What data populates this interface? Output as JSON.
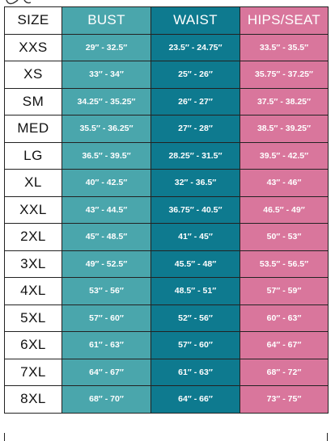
{
  "colors": {
    "bust": "#4aa6ac",
    "waist": "#0e7a8f",
    "hips": "#d9769c"
  },
  "headers": {
    "size": "SIZE",
    "bust": "BUST",
    "waist": "WAIST",
    "hips": "HIPS/SEAT"
  },
  "rows": [
    {
      "size": "XXS",
      "bust": "29″ - 32.5″",
      "waist": "23.5″ - 24.75″",
      "hips": "33.5″ - 35.5″"
    },
    {
      "size": "XS",
      "bust": "33″ - 34″",
      "waist": "25″ - 26″",
      "hips": "35.75″ - 37.25″"
    },
    {
      "size": "SM",
      "bust": "34.25″ - 35.25″",
      "waist": "26″ - 27″",
      "hips": "37.5″ - 38.25″"
    },
    {
      "size": "MED",
      "bust": "35.5″ - 36.25″",
      "waist": "27″ - 28″",
      "hips": "38.5″ - 39.25″"
    },
    {
      "size": "LG",
      "bust": "36.5″ - 39.5″",
      "waist": "28.25″ - 31.5″",
      "hips": "39.5″ - 42.5″"
    },
    {
      "size": "XL",
      "bust": "40″ - 42.5″",
      "waist": "32″ - 36.5″",
      "hips": "43″ - 46″"
    },
    {
      "size": "XXL",
      "bust": "43″ - 44.5″",
      "waist": "36.75″ - 40.5″",
      "hips": "46.5″ - 49″"
    },
    {
      "size": "2XL",
      "bust": "45″ - 48.5″",
      "waist": "41″ - 45″",
      "hips": "50″ - 53″"
    },
    {
      "size": "3XL",
      "bust": "49″ - 52.5″",
      "waist": "45.5″ - 48″",
      "hips": "53.5″ - 56.5″"
    },
    {
      "size": "4XL",
      "bust": "53″ - 56″",
      "waist": "48.5″ - 51″",
      "hips": "57″ - 59″"
    },
    {
      "size": "5XL",
      "bust": "57″ - 60″",
      "waist": "52″ - 56″",
      "hips": "60″ - 63″"
    },
    {
      "size": "6XL",
      "bust": "61″ - 63″",
      "waist": "57″ - 60″",
      "hips": "64″ - 67″"
    },
    {
      "size": "7XL",
      "bust": "64″ - 67″",
      "waist": "61″ - 63″",
      "hips": "68″ - 72″"
    },
    {
      "size": "8XL",
      "bust": "68″ - 70″",
      "waist": "64″ - 66″",
      "hips": "73″ - 75″"
    }
  ]
}
